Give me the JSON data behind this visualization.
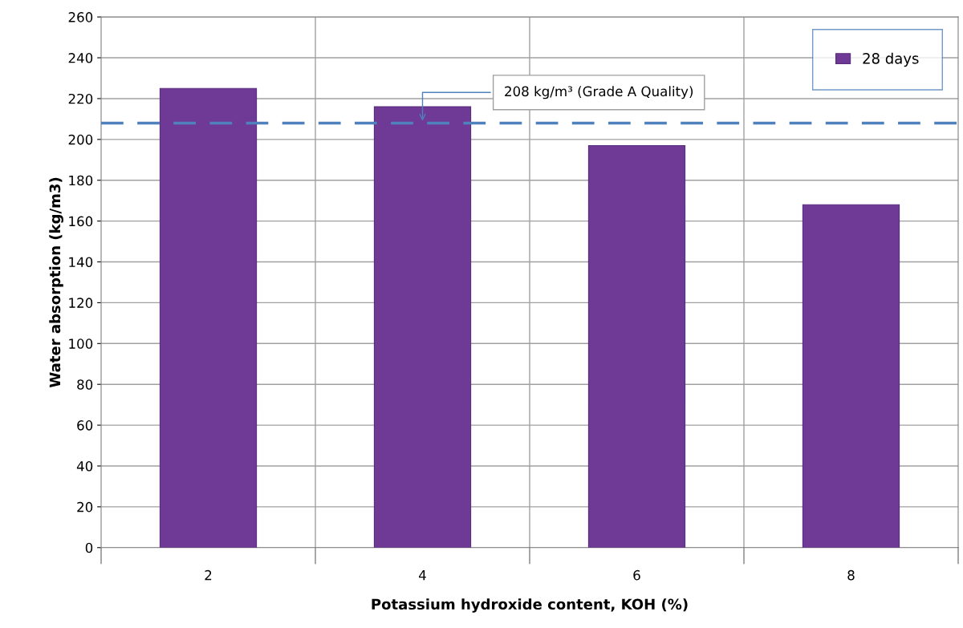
{
  "chart_data": {
    "type": "bar",
    "xlabel": "Potassium hydroxide content, KOH (%)",
    "ylabel": "Water absorption (kg/m3)",
    "categories": [
      "2",
      "4",
      "6",
      "8"
    ],
    "series": [
      {
        "name": "28 days",
        "color": "#6f3a96",
        "values": [
          225,
          216,
          197,
          168
        ]
      }
    ],
    "ylim": [
      0,
      260
    ],
    "yticks": [
      0,
      20,
      40,
      60,
      80,
      100,
      120,
      140,
      160,
      180,
      200,
      220,
      240,
      260
    ],
    "ref_lines": [
      {
        "axis": "y",
        "value": 208,
        "label": "208 kg/m³ (Grade A Quality)",
        "color": "#4f81bd",
        "line_style": "dashed"
      }
    ],
    "grid": true,
    "legend": "top right"
  }
}
